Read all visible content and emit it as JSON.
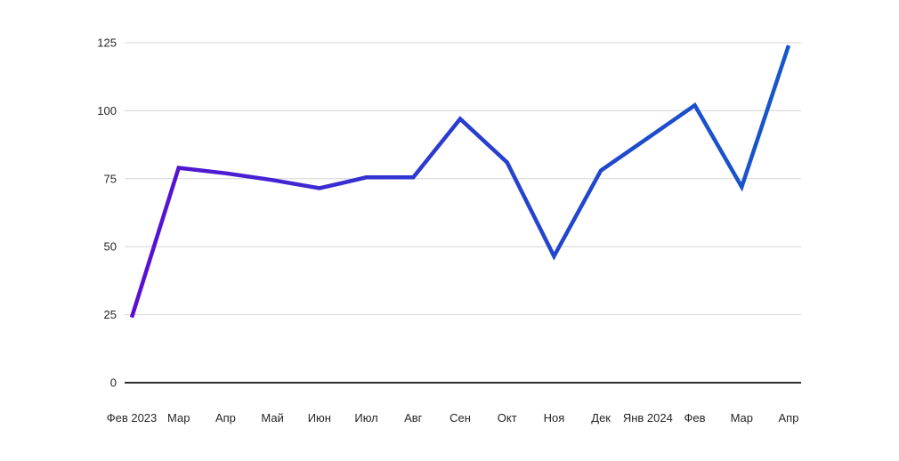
{
  "chart_data": {
    "type": "line",
    "title": "",
    "xlabel": "",
    "ylabel": "",
    "categories": [
      "Фев 2023",
      "Мар",
      "Апр",
      "Май",
      "Июн",
      "Июл",
      "Авг",
      "Сен",
      "Окт",
      "Ноя",
      "Дек",
      "Янв 2024",
      "Фев",
      "Мар",
      "Апр"
    ],
    "values": [
      24,
      79,
      77,
      74.5,
      71.5,
      75.5,
      75.5,
      97,
      81,
      46.5,
      78,
      90,
      102,
      72,
      124
    ],
    "ylim": [
      0,
      125
    ],
    "yticks": [
      0,
      25,
      50,
      75,
      100,
      125
    ],
    "grid": true,
    "legend": false,
    "line_gradient": [
      "#5b0ed3",
      "#2b3ad0",
      "#1557ca"
    ],
    "line_width": 4.5,
    "colors": {
      "background": "#ffffff",
      "gridline": "#d6d6d6",
      "axis_line": "#2e2e2e",
      "tick_label": "#262626"
    }
  }
}
